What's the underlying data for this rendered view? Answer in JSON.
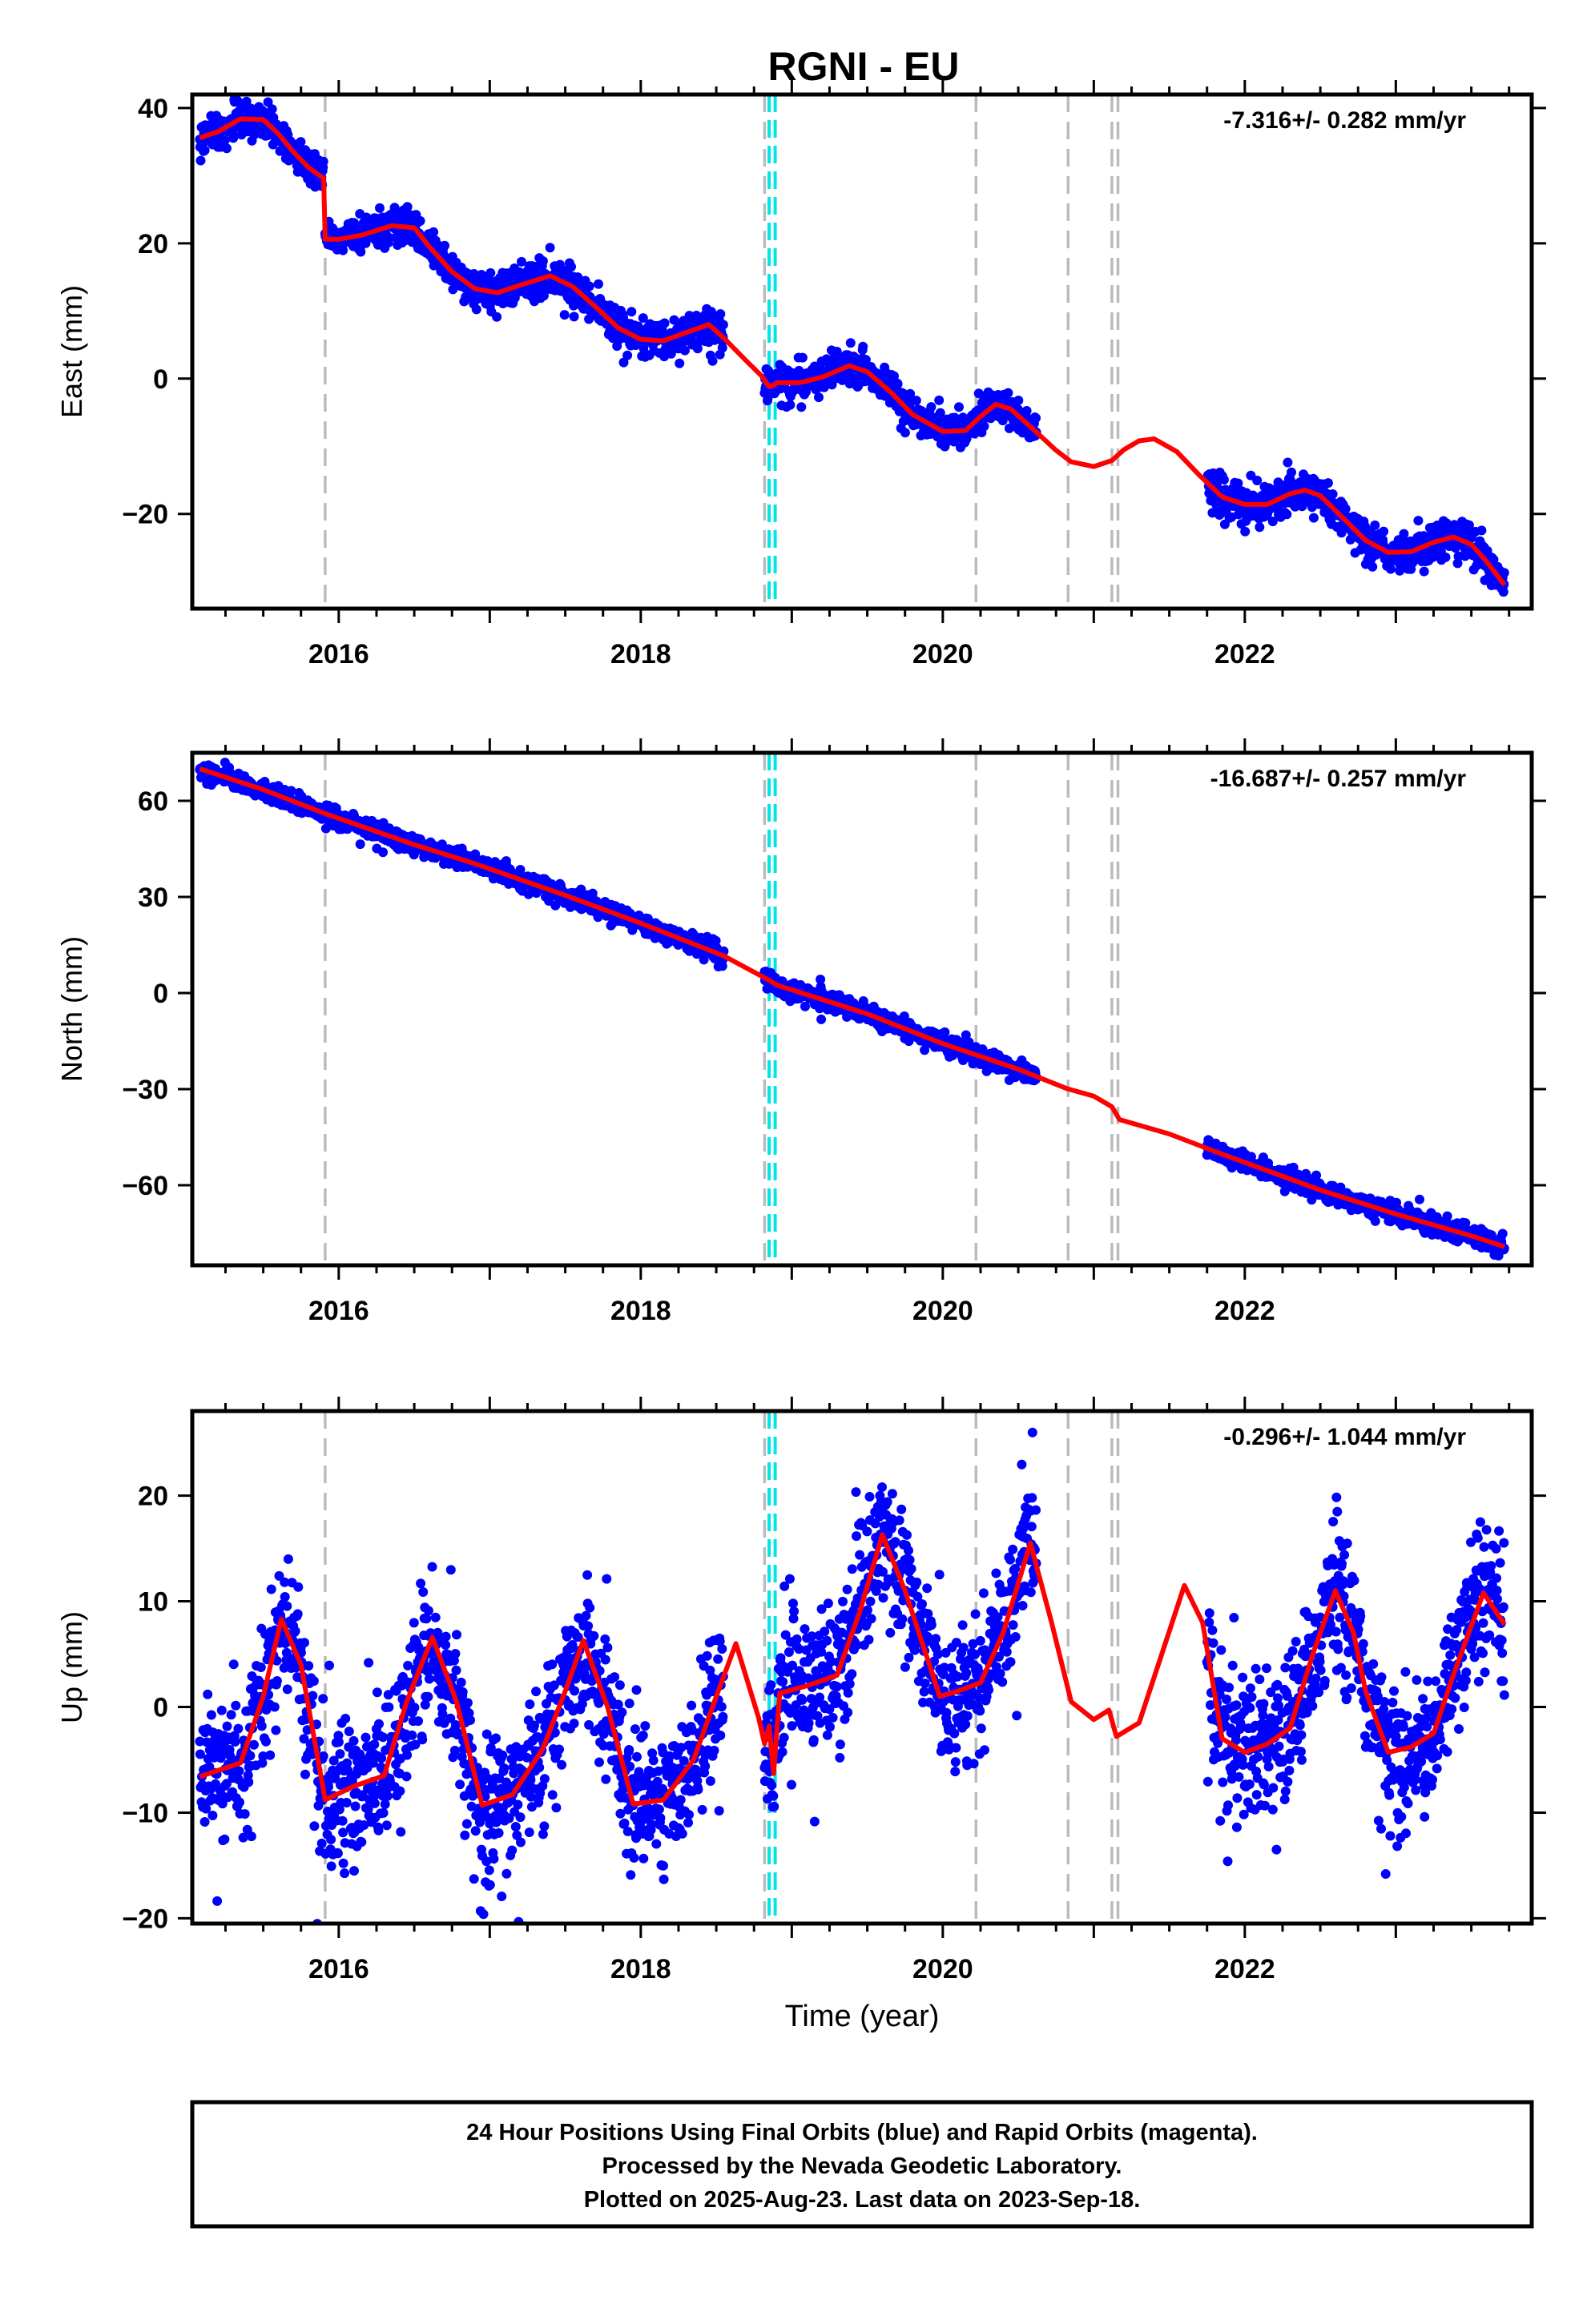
{
  "title": "RGNI - EU",
  "footer": [
    "24 Hour Positions Using Final Orbits (blue) and Rapid Orbits (magenta).",
    "Processed by the Nevada Geodetic Laboratory.",
    "Plotted on 2025-Aug-23. Last data on 2023-Sep-18."
  ],
  "colors": {
    "data_points": "#0000ff",
    "model_fit": "#ff0000",
    "equipment_change": "#bbbbbb",
    "earthquake": "#00e5e5"
  },
  "chart_data": [
    {
      "type": "scatter",
      "ylabel": "East (mm)",
      "xlabel": "",
      "rate_label": "-7.316+/- 0.282 mm/yr",
      "xlim": [
        2015.03,
        2023.9
      ],
      "ylim": [
        -34,
        42
      ],
      "xticks": [
        2016,
        2018,
        2020,
        2022
      ],
      "yticks": [
        -20,
        0,
        20,
        40
      ],
      "ytick_labels": [
        "−20",
        "0",
        "20",
        "40"
      ],
      "fit_points": [
        [
          2015.08,
          35.6
        ],
        [
          2015.2,
          36.5
        ],
        [
          2015.35,
          38.4
        ],
        [
          2015.5,
          38.3
        ],
        [
          2015.6,
          36.2
        ],
        [
          2015.7,
          33.5
        ],
        [
          2015.8,
          31.2
        ],
        [
          2015.9,
          29.6
        ],
        [
          2015.91,
          20.6
        ],
        [
          2016.0,
          20.6
        ],
        [
          2016.15,
          21.2
        ],
        [
          2016.35,
          22.6
        ],
        [
          2016.5,
          22.3
        ],
        [
          2016.6,
          19.5
        ],
        [
          2016.75,
          15.8
        ],
        [
          2016.9,
          13.3
        ],
        [
          2017.05,
          12.7
        ],
        [
          2017.2,
          13.8
        ],
        [
          2017.4,
          15.2
        ],
        [
          2017.55,
          13.6
        ],
        [
          2017.7,
          10.6
        ],
        [
          2017.85,
          7.5
        ],
        [
          2018.0,
          5.8
        ],
        [
          2018.15,
          5.6
        ],
        [
          2018.3,
          6.8
        ],
        [
          2018.45,
          8.0
        ],
        [
          2018.55,
          6.0
        ],
        [
          2018.7,
          2.6
        ],
        [
          2018.8,
          0.4
        ],
        [
          2018.85,
          -1.2
        ],
        [
          2018.88,
          -1.0
        ],
        [
          2018.9,
          -0.6
        ],
        [
          2019.05,
          -0.6
        ],
        [
          2019.2,
          0.2
        ],
        [
          2019.38,
          1.9
        ],
        [
          2019.5,
          1.0
        ],
        [
          2019.65,
          -1.9
        ],
        [
          2019.8,
          -5.3
        ],
        [
          2020.0,
          -7.8
        ],
        [
          2020.15,
          -7.7
        ],
        [
          2020.25,
          -5.6
        ],
        [
          2020.35,
          -3.8
        ],
        [
          2020.45,
          -4.5
        ],
        [
          2020.6,
          -7.5
        ],
        [
          2020.75,
          -10.6
        ],
        [
          2020.85,
          -12.3
        ],
        [
          2021.0,
          -13.0
        ],
        [
          2021.12,
          -12.1
        ],
        [
          2021.2,
          -10.5
        ],
        [
          2021.3,
          -9.2
        ],
        [
          2021.4,
          -8.9
        ],
        [
          2021.55,
          -10.8
        ],
        [
          2021.7,
          -14.3
        ],
        [
          2021.85,
          -17.5
        ],
        [
          2022.0,
          -18.6
        ],
        [
          2022.15,
          -18.6
        ],
        [
          2022.3,
          -17.0
        ],
        [
          2022.4,
          -16.5
        ],
        [
          2022.5,
          -17.3
        ],
        [
          2022.65,
          -20.6
        ],
        [
          2022.8,
          -23.9
        ],
        [
          2022.95,
          -25.7
        ],
        [
          2023.1,
          -25.6
        ],
        [
          2023.25,
          -24.2
        ],
        [
          2023.38,
          -23.4
        ],
        [
          2023.5,
          -24.5
        ],
        [
          2023.6,
          -27.0
        ],
        [
          2023.72,
          -30.5
        ]
      ],
      "data_segments": [
        [
          2015.08,
          2015.9
        ],
        [
          2015.91,
          2018.55
        ],
        [
          2018.82,
          2020.62
        ],
        [
          2021.75,
          2023.72
        ]
      ],
      "noise_mm": 1.3,
      "outlier_mm": 3.5,
      "equipment_change_years": [
        2015.91,
        2018.82,
        2020.22,
        2020.83,
        2021.12,
        2021.16
      ],
      "earthquake_years": [
        2018.85,
        2018.89
      ]
    },
    {
      "type": "scatter",
      "ylabel": "North (mm)",
      "xlabel": "",
      "rate_label": "-16.687+/- 0.257 mm/yr",
      "xlim": [
        2015.03,
        2023.9
      ],
      "ylim": [
        -85,
        75
      ],
      "xticks": [
        2016,
        2018,
        2020,
        2022
      ],
      "yticks": [
        -60,
        -30,
        0,
        30,
        60
      ],
      "ytick_labels": [
        "−60",
        "−30",
        "0",
        "30",
        "60"
      ],
      "fit_points": [
        [
          2015.08,
          70.0
        ],
        [
          2015.5,
          63.5
        ],
        [
          2015.91,
          56.0
        ],
        [
          2016.5,
          46.3
        ],
        [
          2016.9,
          40.4
        ],
        [
          2017.5,
          30.5
        ],
        [
          2018.0,
          21.8
        ],
        [
          2018.55,
          11.6
        ],
        [
          2018.85,
          4.0
        ],
        [
          2018.9,
          2.5
        ],
        [
          2019.5,
          -6.5
        ],
        [
          2020.0,
          -15.8
        ],
        [
          2020.5,
          -23.8
        ],
        [
          2020.82,
          -29.8
        ],
        [
          2021.0,
          -32.2
        ],
        [
          2021.12,
          -35.5
        ],
        [
          2021.17,
          -39.5
        ],
        [
          2021.5,
          -44.0
        ],
        [
          2021.85,
          -50.3
        ],
        [
          2022.5,
          -61.5
        ],
        [
          2023.0,
          -69.0
        ],
        [
          2023.5,
          -75.8
        ],
        [
          2023.72,
          -79.2
        ]
      ],
      "data_segments": [
        [
          2015.08,
          2015.9
        ],
        [
          2015.91,
          2018.55
        ],
        [
          2018.82,
          2020.62
        ],
        [
          2021.75,
          2023.72
        ]
      ],
      "noise_mm": 1.4,
      "outlier_mm": 3.5,
      "equipment_change_years": [
        2015.91,
        2018.82,
        2020.22,
        2020.83,
        2021.12,
        2021.16
      ],
      "earthquake_years": [
        2018.85,
        2018.89
      ]
    },
    {
      "type": "scatter",
      "ylabel": "Up (mm)",
      "xlabel": "Time (year)",
      "rate_label": "-0.296+/- 1.044 mm/yr",
      "xlim": [
        2015.03,
        2023.9
      ],
      "ylim": [
        -20.5,
        28
      ],
      "xticks": [
        2016,
        2018,
        2020,
        2022
      ],
      "yticks": [
        -20,
        -10,
        0,
        10,
        20
      ],
      "ytick_labels": [
        "−20",
        "−10",
        "0",
        "10",
        "20"
      ],
      "fit_points": [
        [
          2015.08,
          -6.6
        ],
        [
          2015.2,
          -6.0
        ],
        [
          2015.35,
          -5.3
        ],
        [
          2015.5,
          1.0
        ],
        [
          2015.62,
          8.3
        ],
        [
          2015.75,
          4.0
        ],
        [
          2015.91,
          -8.8
        ],
        [
          2016.1,
          -7.5
        ],
        [
          2016.3,
          -6.5
        ],
        [
          2016.45,
          0.5
        ],
        [
          2016.62,
          6.6
        ],
        [
          2016.78,
          0.5
        ],
        [
          2016.95,
          -9.3
        ],
        [
          2017.15,
          -8.3
        ],
        [
          2017.35,
          -4.0
        ],
        [
          2017.5,
          1.5
        ],
        [
          2017.62,
          6.3
        ],
        [
          2017.78,
          0.0
        ],
        [
          2017.95,
          -9.2
        ],
        [
          2018.15,
          -8.8
        ],
        [
          2018.35,
          -5.0
        ],
        [
          2018.5,
          1.0
        ],
        [
          2018.63,
          6.0
        ],
        [
          2018.78,
          -1.0
        ],
        [
          2018.82,
          -3.5
        ],
        [
          2018.85,
          -1.8
        ],
        [
          2018.88,
          -6.3
        ],
        [
          2018.92,
          1.3
        ],
        [
          2019.1,
          2.0
        ],
        [
          2019.3,
          3.0
        ],
        [
          2019.45,
          9.0
        ],
        [
          2019.6,
          16.3
        ],
        [
          2019.75,
          11.0
        ],
        [
          2019.98,
          1.0
        ],
        [
          2020.1,
          1.5
        ],
        [
          2020.25,
          2.3
        ],
        [
          2020.4,
          7.0
        ],
        [
          2020.58,
          15.5
        ],
        [
          2020.72,
          8.0
        ],
        [
          2020.85,
          0.5
        ],
        [
          2021.0,
          -1.2
        ],
        [
          2021.1,
          -0.3
        ],
        [
          2021.15,
          -2.8
        ],
        [
          2021.3,
          -1.5
        ],
        [
          2021.45,
          5.0
        ],
        [
          2021.6,
          11.5
        ],
        [
          2021.72,
          8.0
        ],
        [
          2021.85,
          -3.0
        ],
        [
          2022.0,
          -4.3
        ],
        [
          2022.15,
          -3.5
        ],
        [
          2022.3,
          -2.0
        ],
        [
          2022.45,
          5.0
        ],
        [
          2022.6,
          11.0
        ],
        [
          2022.72,
          7.0
        ],
        [
          2022.8,
          1.5
        ],
        [
          2022.95,
          -4.3
        ],
        [
          2023.1,
          -3.8
        ],
        [
          2023.25,
          -2.5
        ],
        [
          2023.38,
          3.0
        ],
        [
          2023.58,
          10.8
        ],
        [
          2023.72,
          7.8
        ]
      ],
      "data_segments": [
        [
          2015.08,
          2015.9
        ],
        [
          2015.91,
          2018.55
        ],
        [
          2018.82,
          2020.62
        ],
        [
          2021.75,
          2023.72
        ]
      ],
      "noise_mm": 3.3,
      "outlier_mm": 11,
      "equipment_change_years": [
        2015.91,
        2018.82,
        2020.22,
        2020.83,
        2021.12,
        2021.16
      ],
      "earthquake_years": [
        2018.85,
        2018.89
      ]
    }
  ]
}
